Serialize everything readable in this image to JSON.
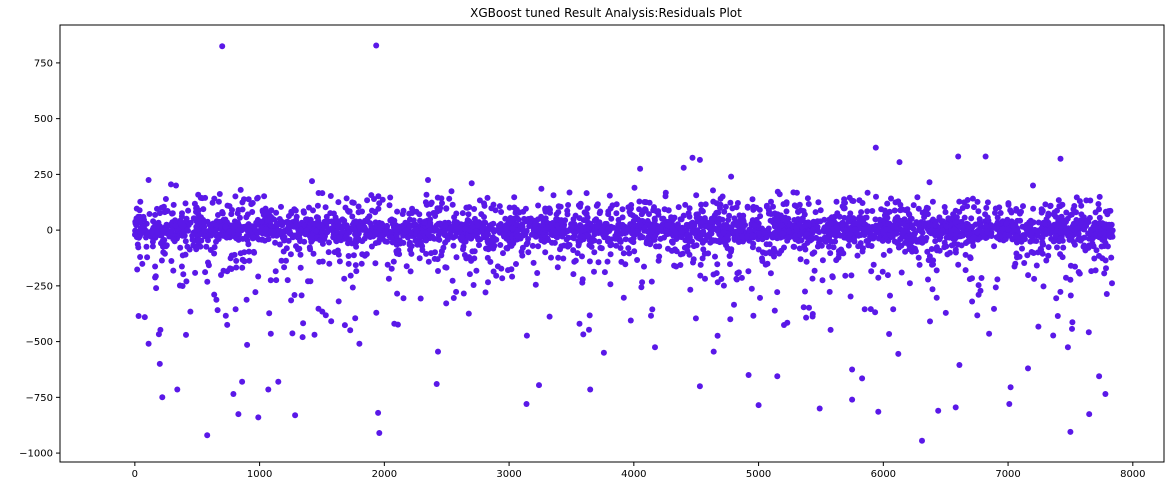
{
  "chart_data": {
    "type": "scatter",
    "title": "XGBoost tuned Result Analysis:Residuals Plot",
    "xlabel": "",
    "ylabel": "",
    "xlim": [
      -600,
      8250
    ],
    "ylim": [
      -1040,
      920
    ],
    "xticks": [
      0,
      1000,
      2000,
      3000,
      4000,
      5000,
      6000,
      7000,
      8000
    ],
    "yticks": [
      -1000,
      -750,
      -500,
      -250,
      0,
      250,
      500,
      750
    ],
    "grid": false,
    "marker_color": "#5a18e8",
    "n_points": 7840,
    "dense_band": [
      -80,
      80
    ],
    "outliers": [
      {
        "x": 700,
        "y": 825
      },
      {
        "x": 1935,
        "y": 828
      },
      {
        "x": 30,
        "y": -385
      },
      {
        "x": 80,
        "y": -390
      },
      {
        "x": 110,
        "y": -510
      },
      {
        "x": 200,
        "y": -600
      },
      {
        "x": 220,
        "y": -750
      },
      {
        "x": 340,
        "y": -715
      },
      {
        "x": 410,
        "y": -470
      },
      {
        "x": 580,
        "y": -920
      },
      {
        "x": 740,
        "y": -425
      },
      {
        "x": 790,
        "y": -735
      },
      {
        "x": 830,
        "y": -825
      },
      {
        "x": 860,
        "y": -680
      },
      {
        "x": 900,
        "y": -515
      },
      {
        "x": 990,
        "y": -840
      },
      {
        "x": 1090,
        "y": -465
      },
      {
        "x": 1070,
        "y": -715
      },
      {
        "x": 1150,
        "y": -680
      },
      {
        "x": 1285,
        "y": -830
      },
      {
        "x": 1800,
        "y": -510
      },
      {
        "x": 1950,
        "y": -820
      },
      {
        "x": 1960,
        "y": -910
      },
      {
        "x": 2080,
        "y": -420
      },
      {
        "x": 2420,
        "y": -690
      },
      {
        "x": 2430,
        "y": -545
      },
      {
        "x": 3140,
        "y": -780
      },
      {
        "x": 3240,
        "y": -695
      },
      {
        "x": 3650,
        "y": -715
      },
      {
        "x": 3760,
        "y": -550
      },
      {
        "x": 4170,
        "y": -525
      },
      {
        "x": 4530,
        "y": -700
      },
      {
        "x": 4640,
        "y": -545
      },
      {
        "x": 4920,
        "y": -650
      },
      {
        "x": 5000,
        "y": -785
      },
      {
        "x": 5150,
        "y": -655
      },
      {
        "x": 5490,
        "y": -800
      },
      {
        "x": 5750,
        "y": -760
      },
      {
        "x": 5750,
        "y": -625
      },
      {
        "x": 5830,
        "y": -665
      },
      {
        "x": 5960,
        "y": -815
      },
      {
        "x": 6120,
        "y": -555
      },
      {
        "x": 6310,
        "y": -945
      },
      {
        "x": 6440,
        "y": -810
      },
      {
        "x": 6580,
        "y": -795
      },
      {
        "x": 6610,
        "y": -605
      },
      {
        "x": 7010,
        "y": -780
      },
      {
        "x": 7020,
        "y": -705
      },
      {
        "x": 7160,
        "y": -620
      },
      {
        "x": 7480,
        "y": -525
      },
      {
        "x": 7500,
        "y": -905
      },
      {
        "x": 7650,
        "y": -825
      },
      {
        "x": 7730,
        "y": -655
      },
      {
        "x": 7780,
        "y": -735
      },
      {
        "x": 110,
        "y": 225
      },
      {
        "x": 290,
        "y": 205
      },
      {
        "x": 330,
        "y": 200
      },
      {
        "x": 1420,
        "y": 220
      },
      {
        "x": 2350,
        "y": 225
      },
      {
        "x": 2700,
        "y": 210
      },
      {
        "x": 4050,
        "y": 275
      },
      {
        "x": 4400,
        "y": 280
      },
      {
        "x": 4470,
        "y": 325
      },
      {
        "x": 4530,
        "y": 315
      },
      {
        "x": 4780,
        "y": 240
      },
      {
        "x": 5940,
        "y": 370
      },
      {
        "x": 6130,
        "y": 305
      },
      {
        "x": 6370,
        "y": 215
      },
      {
        "x": 6600,
        "y": 330
      },
      {
        "x": 6820,
        "y": 330
      },
      {
        "x": 7420,
        "y": 320
      },
      {
        "x": 7200,
        "y": 200
      }
    ]
  }
}
